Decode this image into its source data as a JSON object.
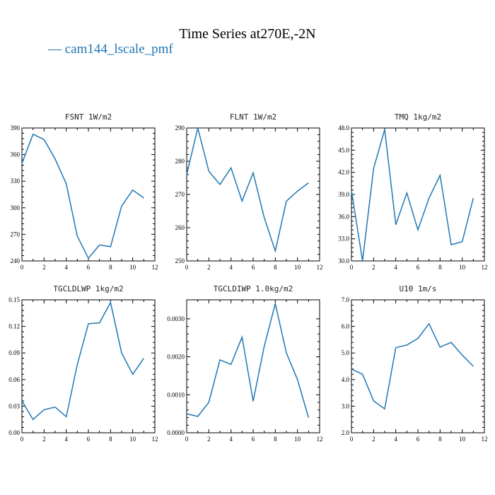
{
  "figure": {
    "title": "Time Series at270E,-2N",
    "legend_label": "— cam144_lscale_pmf",
    "series_color": "#1f77b4"
  },
  "chart_data": [
    {
      "type": "line",
      "title": "FSNT 1W/m2",
      "x": [
        0,
        1,
        2,
        3,
        4,
        5,
        6,
        7,
        8,
        9,
        10,
        11
      ],
      "series": [
        {
          "name": "cam144_lscale_pmf",
          "values": [
            350,
            383,
            377,
            355,
            327,
            268,
            243,
            258,
            256,
            302,
            320,
            311
          ]
        }
      ],
      "xlim": [
        0,
        12
      ],
      "ylim": [
        240,
        390
      ],
      "xticks": [
        0,
        2,
        4,
        6,
        8,
        10,
        12
      ],
      "yticks": [
        240,
        270,
        300,
        330,
        360,
        390
      ],
      "ytick_labels": [
        "240",
        "270",
        "300",
        "330",
        "360",
        "390"
      ]
    },
    {
      "type": "line",
      "title": "FLNT 1W/m2",
      "x": [
        0,
        1,
        2,
        3,
        4,
        5,
        6,
        7,
        8,
        9,
        10,
        11
      ],
      "series": [
        {
          "name": "cam144_lscale_pmf",
          "values": [
            276,
            290,
            277,
            273,
            278,
            268,
            276.5,
            263,
            253,
            268,
            271,
            273.5
          ]
        }
      ],
      "xlim": [
        0,
        12
      ],
      "ylim": [
        250,
        290
      ],
      "xticks": [
        0,
        2,
        4,
        6,
        8,
        10,
        12
      ],
      "yticks": [
        250,
        260,
        270,
        280,
        290
      ],
      "ytick_labels": [
        "250",
        "260",
        "270",
        "280",
        "290"
      ]
    },
    {
      "type": "line",
      "title": "TMQ 1kg/m2",
      "x": [
        0,
        1,
        2,
        3,
        4,
        5,
        6,
        7,
        8,
        9,
        10,
        11
      ],
      "series": [
        {
          "name": "cam144_lscale_pmf",
          "values": [
            39.5,
            30.0,
            42.5,
            47.8,
            34.9,
            39.2,
            34.2,
            38.5,
            41.6,
            32.2,
            32.6,
            38.5
          ]
        }
      ],
      "xlim": [
        0,
        12
      ],
      "ylim": [
        30,
        48
      ],
      "xticks": [
        0,
        2,
        4,
        6,
        8,
        10,
        12
      ],
      "yticks": [
        30,
        33,
        36,
        39,
        42,
        45,
        48
      ],
      "ytick_labels": [
        "30.0",
        "33.0",
        "36.0",
        "39.0",
        "42.0",
        "45.0",
        "48.0"
      ]
    },
    {
      "type": "line",
      "title": "TGCLDLWP 1kg/m2",
      "x": [
        0,
        1,
        2,
        3,
        4,
        5,
        6,
        7,
        8,
        9,
        10,
        11
      ],
      "series": [
        {
          "name": "cam144_lscale_pmf",
          "values": [
            0.036,
            0.015,
            0.026,
            0.029,
            0.018,
            0.077,
            0.123,
            0.124,
            0.147,
            0.09,
            0.066,
            0.084
          ]
        }
      ],
      "xlim": [
        0,
        12
      ],
      "ylim": [
        0,
        0.15
      ],
      "xticks": [
        0,
        2,
        4,
        6,
        8,
        10,
        12
      ],
      "yticks": [
        0,
        0.03,
        0.06,
        0.09,
        0.12,
        0.15
      ],
      "ytick_labels": [
        "0.00",
        "0.03",
        "0.06",
        "0.09",
        "0.12",
        "0.15"
      ]
    },
    {
      "type": "line",
      "title": "TGCLDIWP 1.0kg/m2",
      "x": [
        0,
        1,
        2,
        3,
        4,
        5,
        6,
        7,
        8,
        9,
        10,
        11
      ],
      "series": [
        {
          "name": "cam144_lscale_pmf",
          "values": [
            0.0005,
            0.00043,
            0.0008,
            0.00192,
            0.0018,
            0.00252,
            0.00083,
            0.00228,
            0.0034,
            0.0021,
            0.0014,
            0.0004
          ]
        }
      ],
      "xlim": [
        0,
        12
      ],
      "ylim": [
        0,
        0.0035
      ],
      "xticks": [
        0,
        2,
        4,
        6,
        8,
        10,
        12
      ],
      "yticks": [
        0,
        0.001,
        0.002,
        0.003
      ],
      "ytick_labels": [
        "0.0000",
        "0.0010",
        "0.0020",
        "0.0030"
      ]
    },
    {
      "type": "line",
      "title": "U10 1m/s",
      "x": [
        0,
        1,
        2,
        3,
        4,
        5,
        6,
        7,
        8,
        9,
        10,
        11
      ],
      "series": [
        {
          "name": "cam144_lscale_pmf",
          "values": [
            4.4,
            4.2,
            3.2,
            2.9,
            5.2,
            5.3,
            5.55,
            6.1,
            5.22,
            5.4,
            4.92,
            4.5
          ]
        }
      ],
      "xlim": [
        0,
        12
      ],
      "ylim": [
        2,
        7
      ],
      "xticks": [
        0,
        2,
        4,
        6,
        8,
        10,
        12
      ],
      "yticks": [
        2,
        3,
        4,
        5,
        6,
        7
      ],
      "ytick_labels": [
        "2.0",
        "3.0",
        "4.0",
        "5.0",
        "6.0",
        "7.0"
      ]
    }
  ]
}
